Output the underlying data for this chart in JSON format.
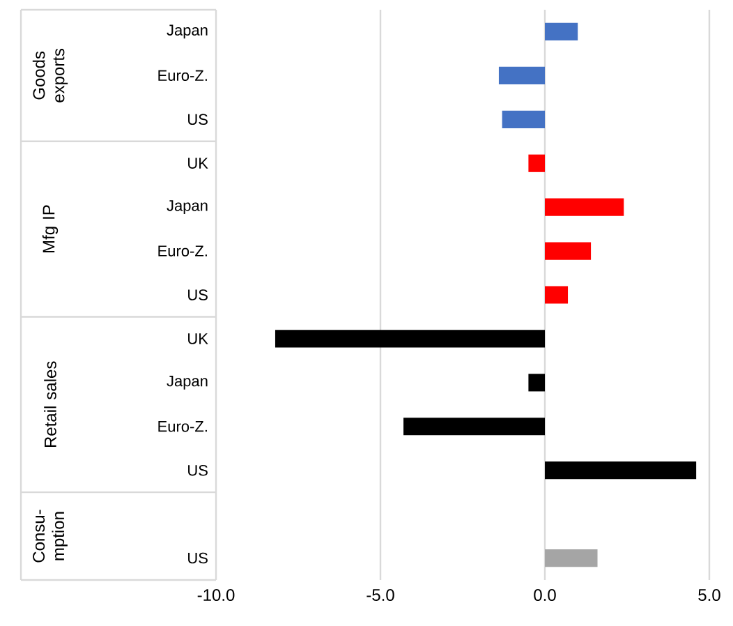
{
  "chart_data": {
    "type": "bar",
    "orientation": "horizontal",
    "categories": [
      "Japan",
      "Euro-Z.",
      "US",
      "UK",
      "Japan",
      "Euro-Z.",
      "US",
      "UK",
      "Japan",
      "Euro-Z.",
      "US",
      null,
      "US"
    ],
    "values": [
      1.0,
      -1.4,
      -1.3,
      -0.5,
      2.4,
      1.4,
      0.7,
      -8.2,
      -0.5,
      -4.3,
      4.6,
      null,
      1.6
    ],
    "colors": [
      "#4472c4",
      "#4472c4",
      "#4472c4",
      "#ff0000",
      "#ff0000",
      "#ff0000",
      "#ff0000",
      "#000000",
      "#000000",
      "#000000",
      "#000000",
      "#a5a5a5",
      "#a5a5a5"
    ],
    "annotations": [
      "Goods exports",
      "Mfg IP",
      "Retail sales",
      "Consu-mption"
    ],
    "xlim": [
      -10,
      5
    ],
    "xticks": [
      {
        "value": -10,
        "label": "-10.0"
      },
      {
        "value": -5,
        "label": "-5.0"
      },
      {
        "value": 0,
        "label": "0.0"
      },
      {
        "value": 5,
        "label": "5.0"
      }
    ],
    "grid": "x"
  }
}
